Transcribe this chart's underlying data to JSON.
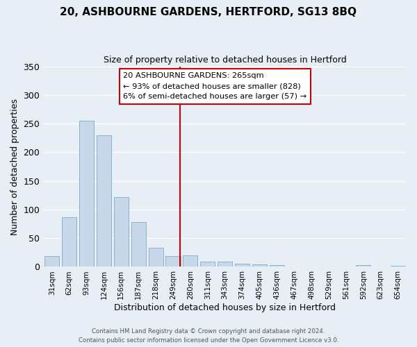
{
  "title": "20, ASHBOURNE GARDENS, HERTFORD, SG13 8BQ",
  "subtitle": "Size of property relative to detached houses in Hertford",
  "xlabel": "Distribution of detached houses by size in Hertford",
  "ylabel": "Number of detached properties",
  "bar_color": "#c8d8ea",
  "bar_edge_color": "#7aaac8",
  "background_color": "#e8eef5",
  "grid_color": "#ffffff",
  "categories": [
    "31sqm",
    "62sqm",
    "93sqm",
    "124sqm",
    "156sqm",
    "187sqm",
    "218sqm",
    "249sqm",
    "280sqm",
    "311sqm",
    "343sqm",
    "374sqm",
    "405sqm",
    "436sqm",
    "467sqm",
    "498sqm",
    "529sqm",
    "561sqm",
    "592sqm",
    "623sqm",
    "654sqm"
  ],
  "values": [
    19,
    87,
    255,
    229,
    122,
    78,
    33,
    19,
    20,
    9,
    9,
    5,
    4,
    3,
    1,
    1,
    0,
    0,
    3,
    0,
    2
  ],
  "ylim": [
    0,
    350
  ],
  "yticks": [
    0,
    50,
    100,
    150,
    200,
    250,
    300,
    350
  ],
  "vline_x": 7.42,
  "vline_color": "#cc0000",
  "annotation_title": "20 ASHBOURNE GARDENS: 265sqm",
  "annotation_line1": "← 93% of detached houses are smaller (828)",
  "annotation_line2": "6% of semi-detached houses are larger (57) →",
  "annotation_box_color": "#ffffff",
  "annotation_box_edge": "#cc0000",
  "footer1": "Contains HM Land Registry data © Crown copyright and database right 2024.",
  "footer2": "Contains public sector information licensed under the Open Government Licence v3.0."
}
